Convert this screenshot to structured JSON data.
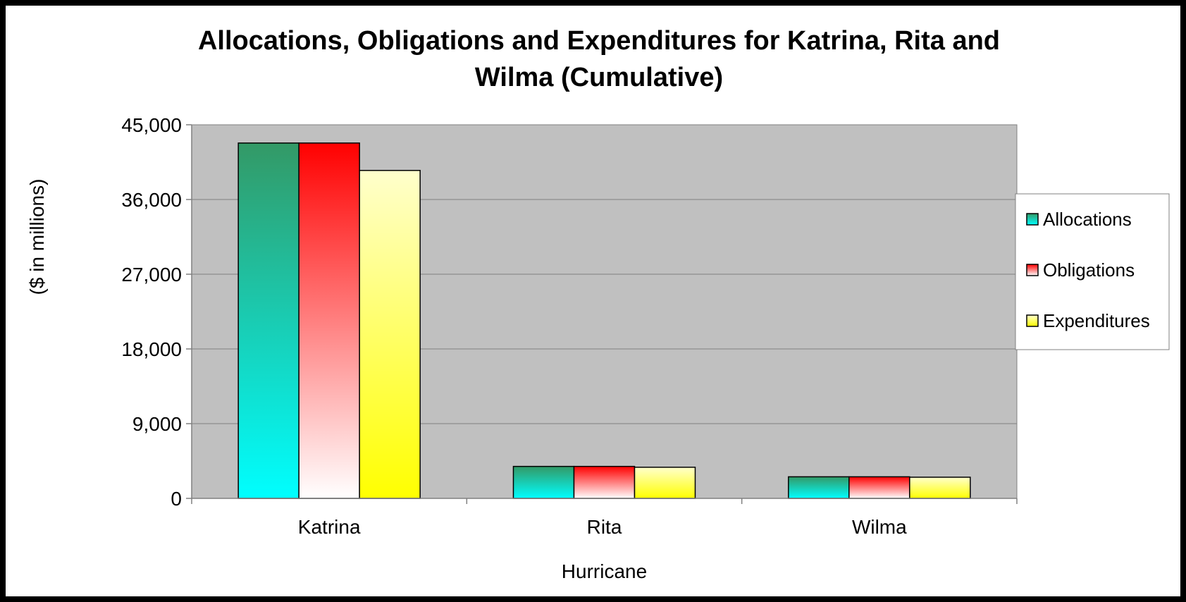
{
  "chart_data": {
    "type": "bar",
    "title_line1": "Allocations, Obligations and Expenditures for Katrina, Rita and",
    "title_line2": "Wilma (Cumulative)",
    "xlabel": "Hurricane",
    "ylabel": "($ in millions)",
    "categories": [
      "Katrina",
      "Rita",
      "Wilma"
    ],
    "ylim": [
      0,
      45000
    ],
    "yticks": [
      0,
      9000,
      18000,
      27000,
      36000,
      45000
    ],
    "ytick_labels": [
      "0",
      "9,000",
      "18,000",
      "27,000",
      "36,000",
      "45,000"
    ],
    "grid": true,
    "legend_position": "right",
    "series": [
      {
        "name": "Allocations",
        "values": [
          42800,
          3850,
          2600
        ],
        "color_top": "#339966",
        "color_bottom": "#00FFFF"
      },
      {
        "name": "Obligations",
        "values": [
          42800,
          3850,
          2600
        ],
        "color_top": "#FF0000",
        "color_bottom": "#FFFFFF"
      },
      {
        "name": "Expenditures",
        "values": [
          39500,
          3750,
          2550
        ],
        "color_top": "#FFFFCC",
        "color_bottom": "#FFFF00"
      }
    ],
    "plot_background": "#C0C0C0"
  }
}
